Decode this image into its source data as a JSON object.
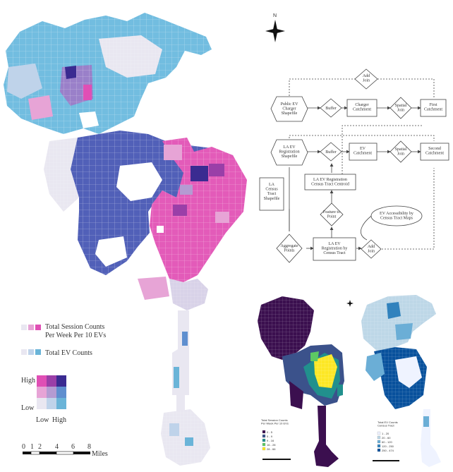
{
  "north_arrow": {
    "label": "N"
  },
  "legend": {
    "session_counts": "Total Session Counts",
    "session_counts_2": "Per Week Per 10 EVs",
    "ev_counts": "Total EV Counts",
    "bivariate": {
      "high": "High",
      "low_y": "Low",
      "low_x": "Low",
      "high_x": "High",
      "colors": [
        [
          "#e04fb5",
          "#9a3fa8",
          "#3a2b91"
        ],
        [
          "#e7a4d6",
          "#b49bd2",
          "#5f8fcf"
        ],
        [
          "#e9e7f1",
          "#bfd3ea",
          "#6ab4d8"
        ]
      ]
    }
  },
  "scale": {
    "ticks": [
      "0",
      "1",
      "2",
      "4",
      "6",
      "8"
    ],
    "unit": "Miles"
  },
  "flowchart": {
    "nodes": {
      "add_join_top": "Add\nJoin",
      "public_ev": "Public EV\nCharger\nShapefile",
      "buffer1": "Buffer",
      "charger_catchment": "Charger\nCatchment",
      "spatial_join1": "Spatial\nJoin",
      "first_catchment": "First\nCatchment",
      "la_ev_reg": "LA EV\nRegistration\nShapefile",
      "buffer2": "Buffer",
      "ev_catchment": "EV\nCatchment",
      "spatial_join2": "Spatial\nJoin",
      "second_catchment": "Second\nCatchment",
      "la_census": "LA\nCensus\nTract\nShapefile",
      "centroid": "LA EV Registration\nCensus Tract Centroid",
      "feature_to_point": "Feature to\nPoint",
      "ev_accessibility": "EV Accessibility by\nCensus Tract Maps",
      "aggregate": "Aggregate\nPoints",
      "reg_by_tract": "LA EV\nRegistration by\nCensus Tract",
      "add_join_bottom": "Add\nJoin"
    }
  },
  "inset_left": {
    "legend_title": "Total Session Counts\nPer Week Per 10 EVs",
    "classes": [
      "0 - 5",
      "5 - 9",
      "9 - 16",
      "16 - 28",
      "28 - 66"
    ],
    "colors": [
      "#3b0f4f",
      "#3b528b",
      "#21908d",
      "#5dc863",
      "#fde725"
    ]
  },
  "inset_right": {
    "legend_title": "Total EV Counts\nCensus Tract",
    "classes": [
      "1 - 20",
      "20 - 60",
      "60 - 120",
      "120 - 250",
      "250 - 474"
    ],
    "colors": [
      "#eff3ff",
      "#bdd7e7",
      "#6baed6",
      "#3182bd",
      "#08519c"
    ]
  }
}
